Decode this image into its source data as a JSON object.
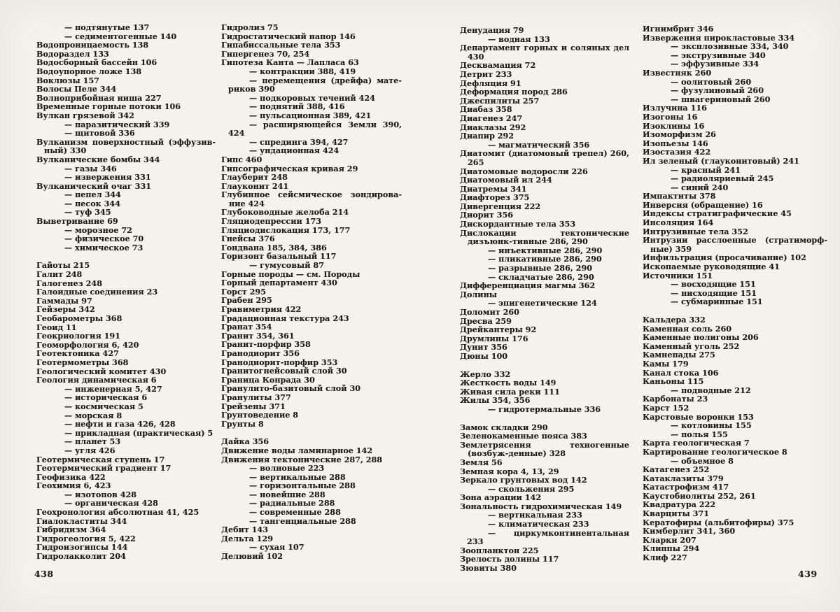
{
  "colors": {
    "paper": "#f3f2ec",
    "ink": "#1f1d1a"
  },
  "document": {
    "kind": "book-index-spread",
    "left_page": {
      "page_number": "438",
      "column_1": [
        "— подтянутые 137",
        "— седиментогенные 140",
        "Водопроницаемость 138",
        "Водораздел 133",
        "Водосборный бассейн 106",
        "Водоупорное ложе 138",
        "Воклюзы 157",
        "Волосы Пеле 344",
        "Волноприбойная ниша 227",
        "Временные горные потоки 106",
        "Вулкан грязевой 342",
        "— паразитический 339",
        "— щитовой 336",
        "Вулканизм поверхностный (эффузив-ный) 330",
        "Вулканические бомбы 344",
        "— газы 346",
        "— извержения 331",
        "Вулканический очаг 331",
        "— пепел 344",
        "— песок 344",
        "— туф 345",
        "Выветривание 69",
        "— морозное 72",
        "— физическое 70",
        "— химическое 73",
        "",
        "Гайоты 215",
        "Галит 248",
        "Галогенез 248",
        "Галоидные соединения 23",
        "Гаммады 97",
        "Гейзеры 342",
        "Геобарометры 368",
        "Геоид 11",
        "Геокриология 191",
        "Геоморфология 6, 420",
        "Геотектоника 427",
        "Геотермометры 368",
        "Геологический комитет 430",
        "Геология динамическая 6",
        "— инженерная 5, 427",
        "— историческая 6",
        "— космическая 5",
        "— морская 8",
        "— нефти и газа 426, 428",
        "— прикладная (практическая) 5",
        "— планет 53",
        "— угля 426",
        "Геотермическая ступень 17",
        "Геотермический градиент 17",
        "Геофизика 422",
        "Геохимия 6, 423",
        "— изотопов 428",
        "— органическая 428",
        "Геохронология абсолютная 41, 425",
        "Гиалокластиты 344",
        "Гибридизм 364",
        "Гидрогеология 5, 422",
        "Гидроизогипсы 144",
        "Гидролакколит 204"
      ],
      "column_2": [
        "Гидролиз 75",
        "Гидростатический напор 146",
        "Гипабиссальные тела 353",
        "Гипергенез 70, 254",
        "Гипотеза Канта — Лапласа 63",
        "— контракции 388, 419",
        "— перемещения (дрейфа) мате-риков 390",
        "— подкоровых течений 424",
        "— поднятий 388, 416",
        "— пульсационная 389, 421",
        "— расширяющейся Земли 390, 424",
        "— спрединга 394, 427",
        "— ундационная 424",
        "Гипс 460",
        "Гипсографическая кривая 29",
        "Глауберит 248",
        "Глауконит 241",
        "Глубинное сейсмическое зондирова-ние 424",
        "Глубоководные желоба 214",
        "Гляциодепрессии 173",
        "Гляциодислокация 173, 177",
        "Гнейсы 376",
        "Гондвана 185, 384, 386",
        "Горизонт базальный 117",
        "— гумусовый 87",
        "Горные породы — см. Породы",
        "Горный департамент 430",
        "Горст 295",
        "Грабен 295",
        "Гравиметрия 422",
        "Градационная текстура 243",
        "Гранат 354",
        "Гранит 354, 361",
        "Гранит-порфир 358",
        "Гранодиорит 356",
        "Гранодиорит-порфир 353",
        "Гранитогнейсовый слой 30",
        "Граница Конрада 30",
        "Гранулито-базитовый слой 30",
        "Гранулиты 377",
        "Грейзены 371",
        "Грунтоведение 8",
        "Грунты 8",
        "",
        "Дайка 356",
        "Движение воды ламинарное 142",
        "Движения тектонические 287, 288",
        "— волновые 223",
        "— вертикальные 288",
        "— горизонтальные 288",
        "— новейшие 288",
        "— радиальные 288",
        "— современные 288",
        "— тангенциальные 288",
        "Дебит 143",
        "Дельта 129",
        "— сухая 107",
        "Делювий 102"
      ]
    },
    "right_page": {
      "page_number": "439",
      "column_1": [
        "Денудация 79",
        "— водная 133",
        "Департамент горных и соляных дел 430",
        "Десквамация 72",
        "Детрит 233",
        "Дефляция 91",
        "Деформация пород 286",
        "Джеспилиты 257",
        "Диабаз 358",
        "Диагенез 247",
        "Диаклазы 292",
        "Диапир 292",
        "— магматический 356",
        "Диатомит (диатомовый трепел) 260, 265",
        "Диатомовые водоросли 226",
        "Диатомовый ил 244",
        "Диатремы 341",
        "Диафторез 375",
        "Дивергенция 222",
        "Диорит 356",
        "Дискордантные тела 353",
        "Дислокации тектонические дизъюнк-тивные 286, 290",
        "— инъективные 286, 290",
        "— пликативные 286, 290",
        "— разрывные 286, 290",
        "— складчатые 286, 290",
        "Дифференциация магмы 362",
        "Долины",
        "— эпигенетические 124",
        "Доломит 260",
        "Дресва 259",
        "Дрейкантеры 92",
        "Друмлины 176",
        "Дунит 356",
        "Дюны 100",
        "",
        "Жерло 332",
        "Жесткость воды 149",
        "Живая сила реки 111",
        "Жилы 354, 356",
        "— гидротермальные 336",
        "",
        "Замок складки 290",
        "Зеленокаменные пояса 383",
        "Землетрясения техногенные (возбуж-денные) 328",
        "Земля 56",
        "Земная кора 4, 13, 29",
        "Зеркало грунтовых вод 142",
        "— скольжения 295",
        "Зона аэрации 142",
        "Зональность гидрохимическая 149",
        "— вертикальная 233",
        "— климатическая 233",
        "— циркумконтинентальная 233",
        "Зоопланктон 225",
        "Зрелость долины 117",
        "Зювиты 380"
      ],
      "column_2": [
        "Игнимбрит 346",
        "Извержения пирокластовые 334",
        "— эксплозивные 334, 340",
        "— экструзивные 340",
        "— эффузивные 334",
        "Известняк 260",
        "— оолитовый 260",
        "— фузулиновый 260",
        "— швагериновый 260",
        "Излучина 116",
        "Изогоны 16",
        "Изоклины 16",
        "Изоморфизм 26",
        "Изопьезы 146",
        "Изостазия 422",
        "Ил зеленый (глауконитовый) 241",
        "— красный 241",
        "— радиоляриевый 245",
        "— синий 240",
        "Импактиты 378",
        "Инверсия (обращение) 16",
        "Индексы стратиграфические 45",
        "Инсоляция 164",
        "Интрузивные тела 352",
        "Интрузии расслоенные (стратиморф-ные) 359",
        "Инфильтрация (просачивание) 102",
        "Ископаемые руководящие 41",
        "Источники 151",
        "— восходящие 151",
        "— нисходящие 151",
        "— субмаринные 151",
        "",
        "Кальдера 332",
        "Каменная соль 260",
        "Каменные полигоны 206",
        "Каменный уголь 252",
        "Камнепады 275",
        "Камы 179",
        "Канал стока 106",
        "Каньоны 115",
        "— подводные 212",
        "Карбонаты 23",
        "Карст 152",
        "Карстовые воронки 153",
        "— котловины 155",
        "— полья 155",
        "Карта геологическая 7",
        "Картирование геологическое 8",
        "— объемное 8",
        "Катагенез 252",
        "Катаклазиты 379",
        "Катастрофизм 417",
        "Каустобиолиты 252, 261",
        "Квадратура 222",
        "Кварциты 371",
        "Кератофиры (альбитофиры) 375",
        "Кимберлит 341, 360",
        "Кларки 207",
        "Клиппы 294",
        "Клиф 227"
      ]
    }
  }
}
